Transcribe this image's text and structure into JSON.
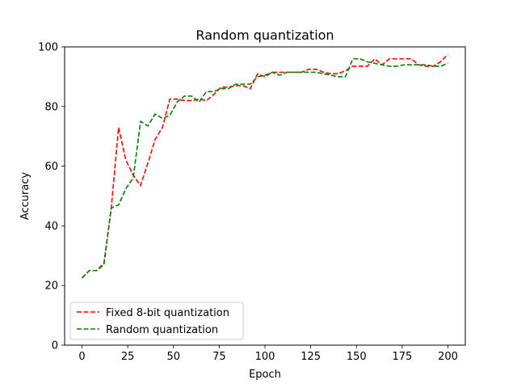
{
  "chart_data": {
    "type": "line",
    "title": "Random quantization",
    "xlabel": "Epoch",
    "ylabel": "Accuracy",
    "xlim": [
      -9.5,
      209.5
    ],
    "ylim": [
      0,
      100
    ],
    "xticks": [
      0,
      25,
      50,
      75,
      100,
      125,
      150,
      175,
      200
    ],
    "yticks": [
      0,
      20,
      40,
      60,
      80,
      100
    ],
    "grid": false,
    "legend_position": "lower-left",
    "series": [
      {
        "name": "Fixed 8-bit quantization",
        "color": "#ff0000",
        "dash": "dashed",
        "x": [
          0,
          4,
          8,
          12,
          16,
          20,
          24,
          28,
          32,
          36,
          40,
          44,
          48,
          52,
          56,
          60,
          64,
          68,
          72,
          76,
          80,
          84,
          88,
          92,
          96,
          100,
          104,
          108,
          112,
          116,
          120,
          124,
          128,
          132,
          136,
          140,
          144,
          148,
          152,
          156,
          160,
          164,
          168,
          172,
          176,
          180,
          184,
          188,
          192,
          196,
          200
        ],
        "y": [
          22.5,
          25,
          25,
          27.5,
          46,
          73,
          62,
          57,
          53.5,
          61,
          69,
          73,
          82.5,
          82.5,
          82,
          82,
          82.5,
          82,
          84,
          86.5,
          86.5,
          87,
          87,
          86,
          91,
          90,
          91.5,
          91.5,
          91.5,
          91.5,
          91.5,
          92.5,
          92.5,
          91.5,
          91,
          91,
          92,
          93.5,
          93.5,
          93.5,
          96,
          94,
          96,
          96,
          96,
          96,
          94,
          93.5,
          93.5,
          95,
          97.5
        ]
      },
      {
        "name": "Random quantization",
        "color": "#008000",
        "dash": "dashed",
        "x": [
          0,
          4,
          8,
          12,
          16,
          20,
          24,
          28,
          32,
          36,
          40,
          44,
          48,
          52,
          56,
          60,
          64,
          68,
          72,
          76,
          80,
          84,
          88,
          92,
          96,
          100,
          104,
          108,
          112,
          116,
          120,
          124,
          128,
          132,
          136,
          140,
          144,
          148,
          152,
          156,
          160,
          164,
          168,
          172,
          176,
          180,
          184,
          188,
          192,
          196,
          200
        ],
        "y": [
          22.5,
          25,
          25,
          27,
          46,
          47,
          52.5,
          56,
          75,
          73.5,
          77.5,
          76,
          77,
          81.5,
          83.5,
          83.5,
          81.5,
          85,
          85,
          86,
          86,
          87.5,
          87.5,
          87.5,
          90,
          90.5,
          91.5,
          90.5,
          91.5,
          91.5,
          91.5,
          91.5,
          91.5,
          91,
          90.5,
          90,
          90,
          96,
          96,
          95,
          94.5,
          94,
          93.5,
          93.5,
          94,
          94,
          94,
          94,
          93.5,
          93.5,
          94.5
        ]
      }
    ]
  }
}
